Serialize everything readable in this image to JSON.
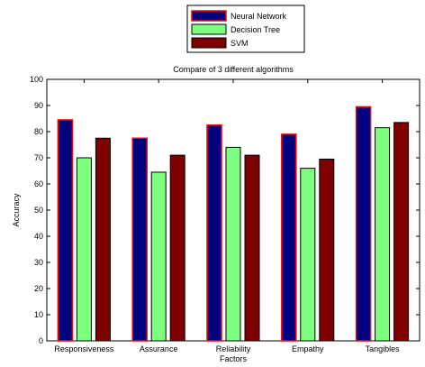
{
  "chart_data": {
    "type": "bar",
    "title": "Compare of 3 different algorithms",
    "xlabel": "",
    "ylabel": "Accuracy",
    "ylim": [
      0,
      100
    ],
    "yticks": [
      0,
      10,
      20,
      30,
      40,
      50,
      60,
      70,
      80,
      90,
      100
    ],
    "categories": [
      "Responsiveness",
      "Assurance",
      "Reliability\nFactors",
      "Empathy",
      "Tangibles"
    ],
    "series": [
      {
        "name": "Neural Network",
        "values": [
          84.5,
          77.5,
          82.5,
          79,
          89.5
        ],
        "color": "#00007f",
        "edge": "#ff0000"
      },
      {
        "name": "Decision Tree",
        "values": [
          70,
          64.5,
          74,
          66,
          81.5
        ],
        "color": "#7fff7f",
        "edge": "#000000"
      },
      {
        "name": "SVM",
        "values": [
          77.5,
          71,
          71,
          69.5,
          83.5
        ],
        "color": "#7f0000",
        "edge": "#000000"
      }
    ],
    "legend_position": "top-center",
    "grid": false
  }
}
